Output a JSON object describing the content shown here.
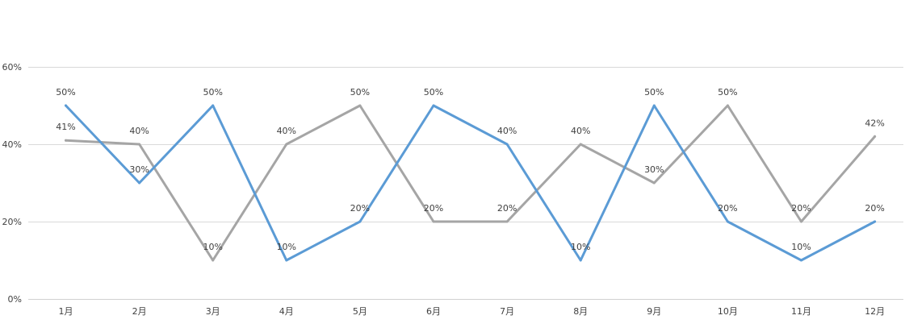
{
  "chart_data": {
    "type": "line",
    "categories": [
      "1月",
      "2月",
      "3月",
      "4月",
      "5月",
      "6月",
      "7月",
      "8月",
      "9月",
      "10月",
      "11月",
      "12月"
    ],
    "y_ticks": [
      "0%",
      "20%",
      "40%",
      "60%"
    ],
    "ylim": [
      0,
      60
    ],
    "grid": true,
    "legend": "none",
    "series": [
      {
        "color": "#5b9bd5",
        "values": [
          50,
          30,
          50,
          10,
          20,
          50,
          40,
          10,
          50,
          20,
          10,
          20
        ],
        "labels": [
          "50%",
          "30%",
          "50%",
          "10%",
          "20%",
          "50%",
          "40%",
          "10%",
          "50%",
          "20%",
          "10%",
          "20%"
        ]
      },
      {
        "color": "#a5a5a5",
        "values": [
          41,
          40,
          10,
          40,
          50,
          20,
          20,
          40,
          30,
          50,
          20,
          42
        ],
        "labels": [
          "41%",
          "40%",
          "10%",
          "40%",
          "50%",
          "20%",
          "20%",
          "40%",
          "30%",
          "50%",
          "20%",
          "42%"
        ]
      }
    ]
  }
}
